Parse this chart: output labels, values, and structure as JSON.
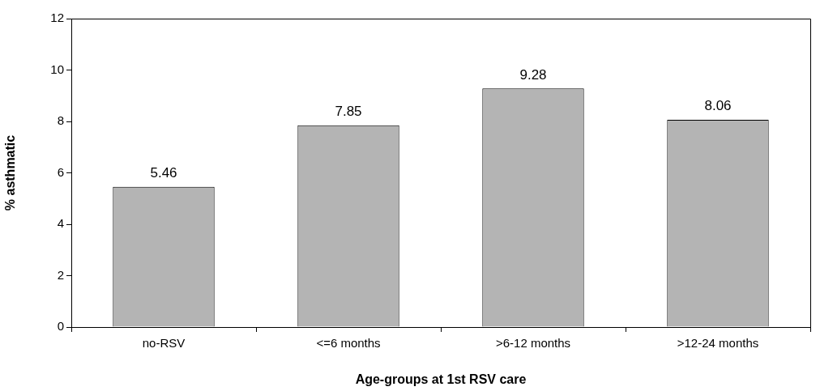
{
  "chart_data": {
    "type": "bar",
    "xlabel": "Age-groups at 1st RSV care",
    "ylabel": "% asthmatic",
    "categories": [
      "no-RSV",
      "<=6 months",
      ">6-12 months",
      ">12-24 months"
    ],
    "values": [
      5.46,
      7.85,
      9.28,
      8.06
    ],
    "color": "#b4b4b4",
    "ylim": [
      0,
      12
    ],
    "yticks": [
      0,
      2,
      4,
      6,
      8,
      10,
      12
    ],
    "data_labels": true
  }
}
